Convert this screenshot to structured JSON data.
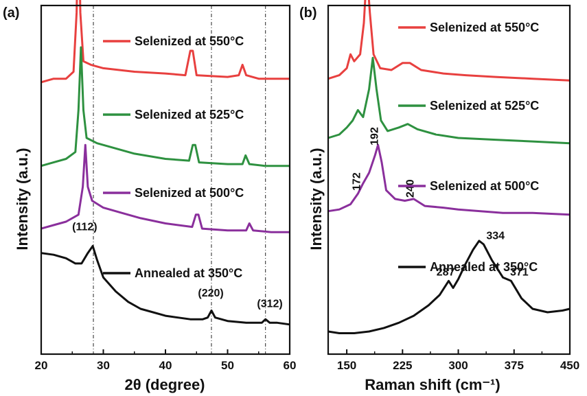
{
  "chart_data": [
    {
      "type": "line",
      "panel_label": "(a)",
      "xlabel": "2θ (degree)",
      "ylabel": "Intensity (a.u.)",
      "xlim": [
        20,
        60
      ],
      "xticks": [
        "20",
        "30",
        "40",
        "50",
        "60"
      ],
      "colors": {
        "550": "#e8403f",
        "525": "#2e9140",
        "500": "#8a2f9c",
        "350": "#111111"
      },
      "reference_lines": [
        28.4,
        47.4,
        56.1
      ],
      "series": [
        {
          "name": "Selenized at 550°C",
          "color": "#e8403f",
          "points": [
            [
              20,
              0.78
            ],
            [
              22,
              0.79
            ],
            [
              24,
              0.79
            ],
            [
              25.2,
              0.81
            ],
            [
              25.7,
              0.98
            ],
            [
              26.0,
              1.27
            ],
            [
              26.3,
              0.98
            ],
            [
              26.8,
              0.84
            ],
            [
              28,
              0.83
            ],
            [
              30,
              0.82
            ],
            [
              35,
              0.81
            ],
            [
              40,
              0.805
            ],
            [
              43.2,
              0.8
            ],
            [
              44.0,
              0.87
            ],
            [
              44.4,
              0.87
            ],
            [
              45.0,
              0.8
            ],
            [
              50,
              0.795
            ],
            [
              51.8,
              0.8
            ],
            [
              52.4,
              0.83
            ],
            [
              53.0,
              0.8
            ],
            [
              55,
              0.79
            ],
            [
              60,
              0.79
            ]
          ]
        },
        {
          "name": "Selenized at 525°C",
          "color": "#2e9140",
          "points": [
            [
              20,
              0.54
            ],
            [
              22,
              0.55
            ],
            [
              24,
              0.56
            ],
            [
              25.5,
              0.58
            ],
            [
              26.0,
              0.7
            ],
            [
              26.4,
              0.88
            ],
            [
              26.8,
              0.7
            ],
            [
              27.3,
              0.62
            ],
            [
              29,
              0.605
            ],
            [
              32,
              0.59
            ],
            [
              35,
              0.575
            ],
            [
              40,
              0.56
            ],
            [
              43.8,
              0.555
            ],
            [
              44.4,
              0.6
            ],
            [
              44.8,
              0.6
            ],
            [
              45.4,
              0.55
            ],
            [
              50,
              0.545
            ],
            [
              52.4,
              0.545
            ],
            [
              52.9,
              0.57
            ],
            [
              53.5,
              0.545
            ],
            [
              56,
              0.54
            ],
            [
              60,
              0.54
            ]
          ]
        },
        {
          "name": "Selenized at 500°C",
          "color": "#8a2f9c",
          "points": [
            [
              20,
              0.36
            ],
            [
              22,
              0.37
            ],
            [
              24,
              0.38
            ],
            [
              26,
              0.4
            ],
            [
              26.7,
              0.48
            ],
            [
              27.1,
              0.6
            ],
            [
              27.5,
              0.48
            ],
            [
              28.2,
              0.44
            ],
            [
              30,
              0.42
            ],
            [
              33,
              0.405
            ],
            [
              36,
              0.39
            ],
            [
              40,
              0.375
            ],
            [
              44.3,
              0.365
            ],
            [
              44.9,
              0.4
            ],
            [
              45.3,
              0.4
            ],
            [
              45.9,
              0.36
            ],
            [
              50,
              0.355
            ],
            [
              53,
              0.355
            ],
            [
              53.5,
              0.375
            ],
            [
              54.1,
              0.355
            ],
            [
              57,
              0.35
            ],
            [
              60,
              0.35
            ]
          ]
        },
        {
          "name": "Annealed at 350°C",
          "color": "#111111",
          "points": [
            [
              20,
              0.29
            ],
            [
              22,
              0.285
            ],
            [
              24,
              0.275
            ],
            [
              25.5,
              0.26
            ],
            [
              26.5,
              0.26
            ],
            [
              27.5,
              0.29
            ],
            [
              28.3,
              0.31
            ],
            [
              29.0,
              0.27
            ],
            [
              30,
              0.22
            ],
            [
              32,
              0.18
            ],
            [
              34,
              0.15
            ],
            [
              36,
              0.13
            ],
            [
              38,
              0.12
            ],
            [
              40,
              0.11
            ],
            [
              42,
              0.105
            ],
            [
              44,
              0.1
            ],
            [
              46,
              0.1
            ],
            [
              46.8,
              0.105
            ],
            [
              47.4,
              0.125
            ],
            [
              48.0,
              0.105
            ],
            [
              50,
              0.095
            ],
            [
              53,
              0.09
            ],
            [
              55.5,
              0.09
            ],
            [
              56.1,
              0.1
            ],
            [
              56.8,
              0.09
            ],
            [
              58,
              0.09
            ],
            [
              60,
              0.085
            ]
          ]
        }
      ],
      "annotations": [
        {
          "text": "(112)",
          "x": 27.0,
          "y": 0.355
        },
        {
          "text": "(220)",
          "x": 47.3,
          "y": 0.165
        },
        {
          "text": "(312)",
          "x": 56.8,
          "y": 0.135
        }
      ]
    },
    {
      "type": "line",
      "panel_label": "(b)",
      "xlabel": "Raman shift (cm⁻¹)",
      "ylabel": "Intensity (a.u.)",
      "xlim": [
        125,
        450
      ],
      "xticks": [
        "150",
        "225",
        "300",
        "375",
        "450"
      ],
      "series": [
        {
          "name": "Selenized at 550°C",
          "color": "#e8403f",
          "points": [
            [
              125,
              0.79
            ],
            [
              140,
              0.8
            ],
            [
              150,
              0.82
            ],
            [
              155,
              0.86
            ],
            [
              160,
              0.84
            ],
            [
              168,
              0.86
            ],
            [
              173,
              0.95
            ],
            [
              177,
              1.1
            ],
            [
              181,
              0.98
            ],
            [
              186,
              0.86
            ],
            [
              195,
              0.82
            ],
            [
              210,
              0.815
            ],
            [
              225,
              0.835
            ],
            [
              235,
              0.835
            ],
            [
              250,
              0.815
            ],
            [
              280,
              0.805
            ],
            [
              310,
              0.8
            ],
            [
              350,
              0.795
            ],
            [
              400,
              0.79
            ],
            [
              450,
              0.785
            ]
          ]
        },
        {
          "name": "Selenized at 525°C",
          "color": "#2e9140",
          "points": [
            [
              125,
              0.62
            ],
            [
              140,
              0.63
            ],
            [
              150,
              0.65
            ],
            [
              158,
              0.67
            ],
            [
              165,
              0.7
            ],
            [
              172,
              0.68
            ],
            [
              180,
              0.76
            ],
            [
              185,
              0.85
            ],
            [
              190,
              0.76
            ],
            [
              196,
              0.67
            ],
            [
              205,
              0.64
            ],
            [
              220,
              0.65
            ],
            [
              232,
              0.66
            ],
            [
              245,
              0.645
            ],
            [
              270,
              0.63
            ],
            [
              300,
              0.62
            ],
            [
              350,
              0.615
            ],
            [
              400,
              0.61
            ],
            [
              450,
              0.605
            ]
          ]
        },
        {
          "name": "Selenized at 500°C",
          "color": "#8a2f9c",
          "points": [
            [
              125,
              0.41
            ],
            [
              140,
              0.415
            ],
            [
              155,
              0.43
            ],
            [
              165,
              0.46
            ],
            [
              172,
              0.49
            ],
            [
              180,
              0.52
            ],
            [
              188,
              0.57
            ],
            [
              192,
              0.6
            ],
            [
              197,
              0.55
            ],
            [
              203,
              0.47
            ],
            [
              215,
              0.445
            ],
            [
              228,
              0.44
            ],
            [
              240,
              0.445
            ],
            [
              255,
              0.425
            ],
            [
              280,
              0.42
            ],
            [
              300,
              0.415
            ],
            [
              330,
              0.41
            ],
            [
              360,
              0.405
            ],
            [
              400,
              0.405
            ],
            [
              450,
              0.4
            ]
          ]
        },
        {
          "name": "Annealed at 350°C",
          "color": "#111111",
          "points": [
            [
              125,
              0.065
            ],
            [
              140,
              0.06
            ],
            [
              160,
              0.06
            ],
            [
              180,
              0.065
            ],
            [
              200,
              0.075
            ],
            [
              220,
              0.09
            ],
            [
              240,
              0.11
            ],
            [
              260,
              0.14
            ],
            [
              275,
              0.17
            ],
            [
              287,
              0.21
            ],
            [
              293,
              0.19
            ],
            [
              300,
              0.215
            ],
            [
              310,
              0.26
            ],
            [
              320,
              0.3
            ],
            [
              328,
              0.325
            ],
            [
              334,
              0.315
            ],
            [
              345,
              0.27
            ],
            [
              360,
              0.22
            ],
            [
              371,
              0.21
            ],
            [
              385,
              0.16
            ],
            [
              400,
              0.13
            ],
            [
              420,
              0.12
            ],
            [
              440,
              0.125
            ],
            [
              450,
              0.13
            ]
          ]
        }
      ],
      "annotations": [
        {
          "text": "172",
          "x": 168,
          "y": 0.495,
          "rotate": -90
        },
        {
          "text": "192",
          "x": 192,
          "y": 0.625,
          "rotate": -90
        },
        {
          "text": "240",
          "x": 240,
          "y": 0.475,
          "rotate": -90
        },
        {
          "text": "287",
          "x": 283,
          "y": 0.225
        },
        {
          "text": "334",
          "x": 350,
          "y": 0.33
        },
        {
          "text": "371",
          "x": 382,
          "y": 0.225
        }
      ]
    }
  ]
}
